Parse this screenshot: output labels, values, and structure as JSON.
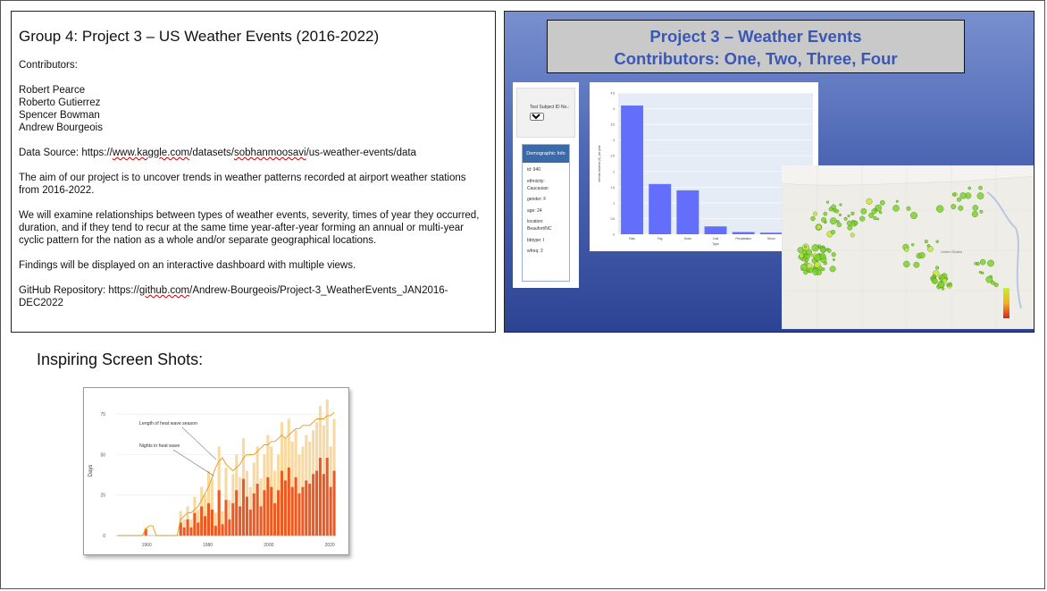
{
  "text_box": {
    "title": "Group 4: Project 3 – US Weather Events (2016-2022)",
    "contributors_label": "Contributors:",
    "contributors": [
      "Robert Pearce",
      "Roberto Gutierrez",
      "Spencer Bowman",
      "Andrew Bourgeois"
    ],
    "data_source_prefix": "Data Source: https://",
    "data_source_link": "www.kaggle.com",
    "data_source_mid": "/datasets/",
    "data_source_link2": "sobhanmoosavi",
    "data_source_suffix": "/us-weather-events/data",
    "aim": "The aim of our project is to uncover trends in weather patterns recorded at airport weather stations from 2016-2022.",
    "examine": "We will examine relationships between types of weather events, severity, times of year they occurred, duration, and if they tend to recur at the same time year-after-year forming an annual or multi-year cyclic pattern for the nation as a whole and/or separate geographical locations.",
    "findings": "Findings will be displayed on an interactive dashboard with multiple views.",
    "github_prefix": "GitHub Repository: https://",
    "github_link": "github.com",
    "github_suffix": "/Andrew-Bourgeois/Project-3_WeatherEvents_JAN2016-DEC2022"
  },
  "slide": {
    "title_line1": "Project 3 – Weather Events",
    "title_line2": "Contributors: One, Two, Three, Four",
    "subject_label": "Test Subject ID No.:",
    "subject_value": "940",
    "demo_header": "Demographic Info",
    "demo_items": [
      "id: 940",
      "ethnicity: Caucasian",
      "gender: F",
      "age: 24",
      "location: Beaufort/NC",
      "bbtype: I",
      "wfreq: 2"
    ],
    "map_label": "United States",
    "colors": {
      "bar": "#636efa",
      "map_point": "#7ad12a"
    }
  },
  "chart_data": [
    {
      "type": "bar",
      "title": "",
      "xlabel": "Type",
      "ylabel": "Interval duration (h), per year",
      "categories": [
        "Rain",
        "Fog",
        "Snow",
        "Cold",
        "Precipitation",
        "Storm",
        "Hail"
      ],
      "values": [
        4.1,
        1.6,
        1.4,
        0.25,
        0.07,
        0.05,
        0.02
      ],
      "ylim": [
        0,
        4.5
      ],
      "yticks": [
        "0",
        "0.5",
        "1",
        "1.5",
        "2",
        "2.5",
        "3",
        "3.5",
        "4",
        "4.5"
      ],
      "grid": true
    },
    {
      "type": "bar",
      "title": "",
      "xlabel": "",
      "ylabel": "Days",
      "ylim": [
        0,
        80
      ],
      "yticks": [
        "0",
        "25",
        "50",
        "75"
      ],
      "xticks": [
        "1960",
        "1980",
        "2000",
        "2020"
      ],
      "annotations": [
        "Length of heat wave season",
        "Nights in heat wave"
      ],
      "series": [
        {
          "name": "Length of heat wave season",
          "values": [
            0,
            0,
            0,
            0,
            0,
            0,
            0,
            0,
            5,
            0,
            0,
            0,
            0,
            0,
            0,
            0,
            0,
            0,
            15,
            10,
            18,
            10,
            24,
            16,
            30,
            25,
            40,
            35,
            14,
            55,
            15,
            42,
            22,
            38,
            50,
            36,
            60,
            40,
            30,
            45,
            55,
            35,
            50,
            62,
            55,
            40,
            50,
            70,
            60,
            72,
            58,
            65,
            50,
            55,
            62,
            58,
            65,
            70,
            80,
            68,
            84,
            55,
            72
          ]
        },
        {
          "name": "Nights in heat wave",
          "values": [
            0,
            0,
            0,
            0,
            0,
            0,
            0,
            0,
            4,
            0,
            0,
            0,
            0,
            0,
            0,
            0,
            0,
            0,
            8,
            5,
            10,
            5,
            14,
            8,
            18,
            12,
            20,
            16,
            6,
            28,
            7,
            22,
            10,
            20,
            28,
            18,
            35,
            24,
            16,
            26,
            32,
            18,
            28,
            36,
            30,
            20,
            28,
            40,
            34,
            42,
            30,
            36,
            26,
            30,
            34,
            32,
            38,
            40,
            48,
            38,
            48,
            30,
            40
          ]
        },
        {
          "name": "Trend",
          "values": [
            0,
            0,
            0,
            0,
            0,
            0,
            0,
            0,
            4,
            6,
            6,
            0,
            0,
            0,
            0,
            0,
            0,
            0,
            10,
            12,
            14,
            14,
            16,
            18,
            22,
            26,
            30,
            36,
            42,
            46,
            48,
            44,
            42,
            40,
            42,
            44,
            48,
            50,
            50,
            50,
            52,
            54,
            56,
            56,
            58,
            58,
            60,
            62,
            60,
            62,
            64,
            66,
            66,
            68,
            68,
            68,
            70,
            72,
            72,
            72,
            74,
            74,
            76
          ]
        }
      ]
    }
  ],
  "heading": "Inspiring Screen Shots:"
}
